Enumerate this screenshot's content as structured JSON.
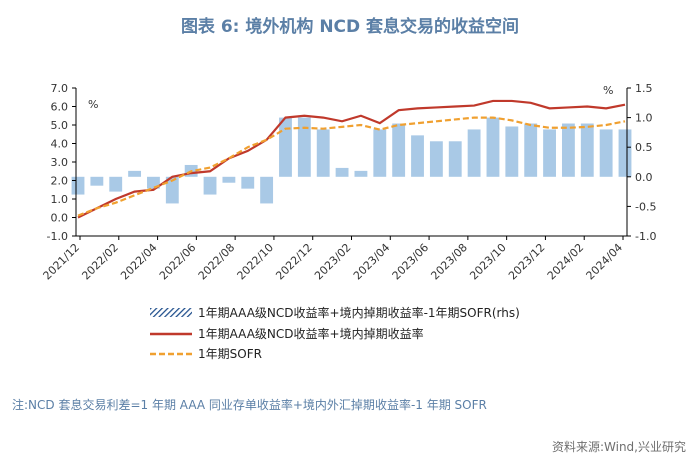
{
  "title": "图表 6:  境外机构 NCD 套息交易的收益空间",
  "note": "注:NCD 套息交易利差=1 年期 AAA 同业存单收益率+境内外汇掉期收益率-1 年期 SOFR",
  "source": "资料来源:Wind,兴业研究",
  "colors": {
    "bars": "#a9c9e6",
    "carry": "#c0392b",
    "sofr": "#f0a030"
  },
  "chart_data": {
    "type": "line",
    "left_axis": {
      "unit": "%",
      "ylim": [
        -1.0,
        7.0
      ],
      "ticks": [
        "-1.0",
        "0.0",
        "1.0",
        "2.0",
        "3.0",
        "4.0",
        "5.0",
        "6.0",
        "7.0"
      ]
    },
    "right_axis": {
      "unit": "%",
      "ylim": [
        -1.0,
        1.5
      ],
      "ticks": [
        "-1.0",
        "-0.5",
        "0.0",
        "0.5",
        "1.0",
        "1.5"
      ]
    },
    "x_ticks": [
      "2021/12",
      "2022/02",
      "2022/04",
      "2022/06",
      "2022/08",
      "2022/10",
      "2022/12",
      "2023/02",
      "2023/04",
      "2023/06",
      "2023/08",
      "2023/10",
      "2023/12",
      "2024/02",
      "2024/04"
    ],
    "x": [
      "2021/12",
      "2022/01",
      "2022/02",
      "2022/03",
      "2022/04",
      "2022/05",
      "2022/06",
      "2022/07",
      "2022/08",
      "2022/09",
      "2022/10",
      "2022/11",
      "2022/12",
      "2023/01",
      "2023/02",
      "2023/03",
      "2023/04",
      "2023/05",
      "2023/06",
      "2023/07",
      "2023/08",
      "2023/09",
      "2023/10",
      "2023/11",
      "2023/12",
      "2024/01",
      "2024/02",
      "2024/03",
      "2024/04",
      "2024/05"
    ],
    "series": [
      {
        "name": "1年期AAA级NCD收益率+境内掉期收益率-1年期SOFR(rhs)",
        "type": "bar",
        "axis": "right",
        "values": [
          -0.3,
          -0.15,
          -0.25,
          0.1,
          -0.2,
          -0.45,
          0.2,
          -0.3,
          -0.1,
          -0.2,
          -0.45,
          1.0,
          1.0,
          0.8,
          0.15,
          0.1,
          0.8,
          0.9,
          0.7,
          0.6,
          0.6,
          0.8,
          1.0,
          0.85,
          0.9,
          0.8,
          0.9,
          0.9,
          0.8,
          0.8
        ]
      },
      {
        "name": "1年期AAA级NCD收益率+境内掉期收益率",
        "type": "line",
        "axis": "left",
        "values": [
          0.0,
          0.5,
          1.0,
          1.4,
          1.5,
          2.2,
          2.4,
          2.5,
          3.2,
          3.6,
          4.2,
          5.4,
          5.5,
          5.4,
          5.2,
          5.5,
          5.1,
          5.8,
          5.9,
          5.95,
          6.0,
          6.05,
          6.3,
          6.3,
          6.2,
          5.9,
          5.95,
          6.0,
          5.9,
          6.1
        ]
      },
      {
        "name": "1年期SOFR",
        "type": "line",
        "axis": "left",
        "values": [
          0.1,
          0.5,
          0.8,
          1.2,
          1.6,
          2.0,
          2.5,
          2.7,
          3.2,
          3.8,
          4.2,
          4.8,
          4.85,
          4.8,
          4.9,
          5.0,
          4.75,
          5.0,
          5.1,
          5.2,
          5.3,
          5.4,
          5.4,
          5.25,
          5.0,
          4.85,
          4.85,
          4.9,
          5.0,
          5.2
        ]
      }
    ]
  }
}
